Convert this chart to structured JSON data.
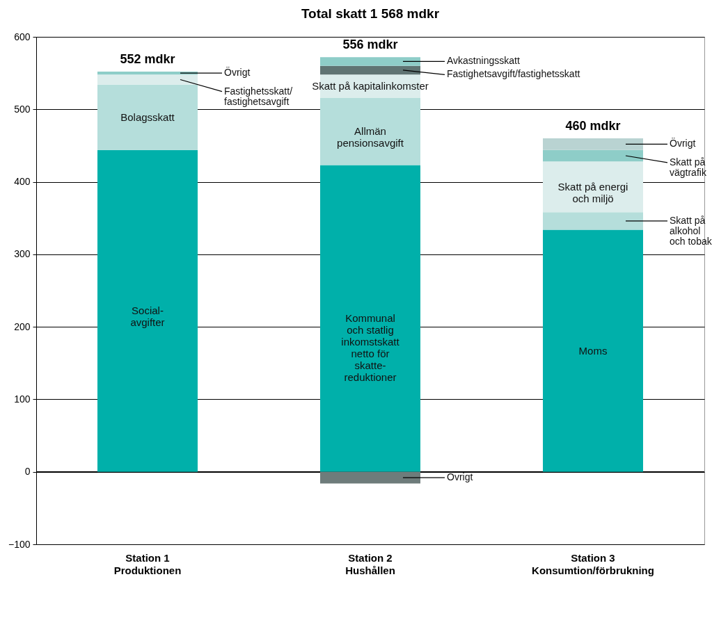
{
  "chart_data": {
    "type": "bar",
    "title": "Total skatt 1 568 mdkr",
    "stacked": true,
    "grid": "y",
    "categories": [
      "Station 1\nProduktionen",
      "Station 2\nHushållen",
      "Station 3\nKonsumtion/förbrukning"
    ],
    "ylim": [
      -100,
      600
    ],
    "yticks": [
      -100,
      0,
      100,
      200,
      300,
      400,
      500,
      600
    ],
    "series": [
      {
        "name": "Social-\navgifter",
        "color": "#00b0aa",
        "values": [
          444,
          null,
          null
        ]
      },
      {
        "name": "Kommunal\noch statlig\ninkomstskatt\nnetto för\nskatte-\nreduktioner",
        "color": "#00b0aa",
        "values": [
          null,
          423,
          null
        ]
      },
      {
        "name": "Moms",
        "color": "#00b0aa",
        "values": [
          null,
          null,
          334
        ]
      },
      {
        "name": "Bolagsskatt",
        "color": "#b5dedb",
        "values": [
          90,
          null,
          null
        ]
      },
      {
        "name": "Allmän\npensionsavgift",
        "color": "#b5dedb",
        "values": [
          null,
          93,
          null
        ]
      },
      {
        "name": "Skatt på\nalkohol\noch tobak",
        "color": "#b5dedb",
        "values": [
          null,
          null,
          24
        ]
      },
      {
        "name": "Fastighetsskatt/\nfastighetsavgift",
        "color": "#dcedec",
        "values": [
          14,
          null,
          null
        ]
      },
      {
        "name": "Skatt på kapitalinkomster",
        "color": "#dcedec",
        "values": [
          null,
          32,
          null
        ]
      },
      {
        "name": "Skatt på energi\noch miljö",
        "color": "#dcedec",
        "values": [
          null,
          null,
          70
        ]
      },
      {
        "name": "Övrigt",
        "color": "#8ecdc8",
        "values": [
          4,
          null,
          null
        ]
      },
      {
        "name": "Fastighetsavgift/fastighetsskatt",
        "color": "#5f7473",
        "values": [
          null,
          12,
          null
        ]
      },
      {
        "name": "Avkastningsskatt",
        "color": "#8ecdc8",
        "values": [
          null,
          12,
          null
        ]
      },
      {
        "name": "Skatt på\nvägtrafik",
        "color": "#8ecdc8",
        "values": [
          null,
          null,
          16
        ]
      },
      {
        "name": "Övrigt",
        "color": "#b9d3d2",
        "values": [
          null,
          null,
          16
        ]
      },
      {
        "name": "Övrigt",
        "color": "#6e7c7b",
        "values": [
          null,
          -16,
          null
        ]
      }
    ],
    "totals": [
      "552 mdkr",
      "556 mdkr",
      "460 mdkr"
    ]
  }
}
